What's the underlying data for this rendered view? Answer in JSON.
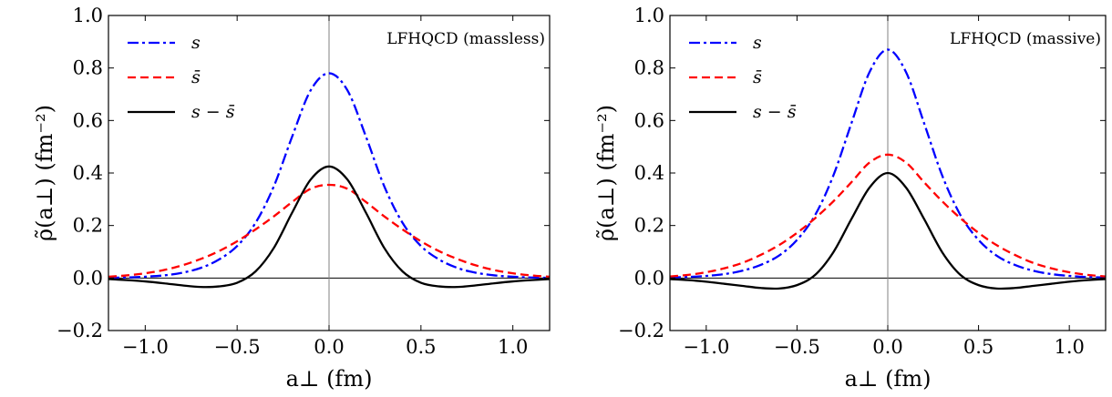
{
  "chart_data": [
    {
      "type": "line",
      "annotation": "LFHQCD (massless)",
      "xlabel": "a⊥ (fm)",
      "ylabel": "ρ̃(a⊥) (fm⁻²)",
      "xlim": [
        -1.2,
        1.2
      ],
      "ylim": [
        -0.2,
        1.0
      ],
      "xticks": [
        -1.0,
        -0.5,
        0.0,
        0.5,
        1.0
      ],
      "xtick_labels": [
        "−1.0",
        "−0.5",
        "0.0",
        "0.5",
        "1.0"
      ],
      "yticks": [
        -0.2,
        0.0,
        0.2,
        0.4,
        0.6,
        0.8,
        1.0
      ],
      "ytick_labels": [
        "−0.2",
        "0.0",
        "0.2",
        "0.4",
        "0.6",
        "0.8",
        "1.0"
      ],
      "grid": false,
      "legend_position": "top-left",
      "reference_lines": {
        "horizontal": 0.0,
        "vertical": 0.0
      },
      "series": [
        {
          "name": "s",
          "color": "#0000ff",
          "style": "dashdot",
          "x": [
            -1.2,
            -1.1,
            -1.0,
            -0.9,
            -0.8,
            -0.7,
            -0.6,
            -0.5,
            -0.4,
            -0.3,
            -0.2,
            -0.1,
            0.0,
            0.1,
            0.2,
            0.3,
            0.4,
            0.5,
            0.6,
            0.7,
            0.8,
            0.9,
            1.0,
            1.1,
            1.2
          ],
          "y": [
            0.001,
            0.002,
            0.005,
            0.01,
            0.02,
            0.038,
            0.07,
            0.122,
            0.21,
            0.35,
            0.54,
            0.715,
            0.78,
            0.715,
            0.54,
            0.35,
            0.21,
            0.122,
            0.07,
            0.038,
            0.02,
            0.01,
            0.005,
            0.002,
            0.001
          ]
        },
        {
          "name": "s̄",
          "color": "#ff0000",
          "style": "dashed",
          "x": [
            -1.2,
            -1.1,
            -1.0,
            -0.9,
            -0.8,
            -0.7,
            -0.6,
            -0.5,
            -0.4,
            -0.3,
            -0.2,
            -0.1,
            0.0,
            0.1,
            0.2,
            0.3,
            0.4,
            0.5,
            0.6,
            0.7,
            0.8,
            0.9,
            1.0,
            1.1,
            1.2
          ],
          "y": [
            0.005,
            0.01,
            0.018,
            0.03,
            0.048,
            0.072,
            0.102,
            0.14,
            0.185,
            0.235,
            0.29,
            0.34,
            0.355,
            0.34,
            0.29,
            0.235,
            0.185,
            0.14,
            0.102,
            0.072,
            0.048,
            0.03,
            0.018,
            0.01,
            0.005
          ]
        },
        {
          "name": "s − s̄",
          "color": "#000000",
          "style": "solid",
          "x": [
            -1.2,
            -1.1,
            -1.0,
            -0.9,
            -0.8,
            -0.7,
            -0.6,
            -0.5,
            -0.4,
            -0.3,
            -0.2,
            -0.1,
            0.0,
            0.1,
            0.2,
            0.3,
            0.4,
            0.5,
            0.6,
            0.7,
            0.8,
            0.9,
            1.0,
            1.1,
            1.2
          ],
          "y": [
            -0.004,
            -0.008,
            -0.013,
            -0.02,
            -0.028,
            -0.034,
            -0.032,
            -0.018,
            0.025,
            0.115,
            0.25,
            0.375,
            0.425,
            0.375,
            0.25,
            0.115,
            0.025,
            -0.018,
            -0.032,
            -0.034,
            -0.028,
            -0.02,
            -0.013,
            -0.008,
            -0.004
          ]
        }
      ]
    },
    {
      "type": "line",
      "annotation": "LFHQCD (massive)",
      "xlabel": "a⊥ (fm)",
      "ylabel": "ρ̃(a⊥) (fm⁻²)",
      "xlim": [
        -1.2,
        1.2
      ],
      "ylim": [
        -0.2,
        1.0
      ],
      "xticks": [
        -1.0,
        -0.5,
        0.0,
        0.5,
        1.0
      ],
      "xtick_labels": [
        "−1.0",
        "−0.5",
        "0.0",
        "0.5",
        "1.0"
      ],
      "yticks": [
        -0.2,
        0.0,
        0.2,
        0.4,
        0.6,
        0.8,
        1.0
      ],
      "ytick_labels": [
        "−0.2",
        "0.0",
        "0.2",
        "0.4",
        "0.6",
        "0.8",
        "1.0"
      ],
      "grid": false,
      "legend_position": "top-left",
      "reference_lines": {
        "horizontal": 0.0,
        "vertical": 0.0
      },
      "series": [
        {
          "name": "s",
          "color": "#0000ff",
          "style": "dashdot",
          "x": [
            -1.2,
            -1.1,
            -1.0,
            -0.9,
            -0.8,
            -0.7,
            -0.6,
            -0.5,
            -0.4,
            -0.3,
            -0.2,
            -0.1,
            0.0,
            0.1,
            0.2,
            0.3,
            0.4,
            0.5,
            0.6,
            0.7,
            0.8,
            0.9,
            1.0,
            1.1,
            1.2
          ],
          "y": [
            0.002,
            0.004,
            0.008,
            0.015,
            0.028,
            0.05,
            0.085,
            0.145,
            0.24,
            0.39,
            0.59,
            0.785,
            0.87,
            0.785,
            0.59,
            0.39,
            0.24,
            0.145,
            0.085,
            0.05,
            0.028,
            0.015,
            0.008,
            0.004,
            0.002
          ]
        },
        {
          "name": "s̄",
          "color": "#ff0000",
          "style": "dashed",
          "x": [
            -1.2,
            -1.1,
            -1.0,
            -0.9,
            -0.8,
            -0.7,
            -0.6,
            -0.5,
            -0.4,
            -0.3,
            -0.2,
            -0.1,
            0.0,
            0.1,
            0.2,
            0.3,
            0.4,
            0.5,
            0.6,
            0.7,
            0.8,
            0.9,
            1.0,
            1.1,
            1.2
          ],
          "y": [
            0.006,
            0.012,
            0.022,
            0.037,
            0.058,
            0.088,
            0.125,
            0.172,
            0.228,
            0.292,
            0.365,
            0.44,
            0.47,
            0.44,
            0.365,
            0.292,
            0.228,
            0.172,
            0.125,
            0.088,
            0.058,
            0.037,
            0.022,
            0.012,
            0.006
          ]
        },
        {
          "name": "s − s̄",
          "color": "#000000",
          "style": "solid",
          "x": [
            -1.2,
            -1.1,
            -1.0,
            -0.9,
            -0.8,
            -0.7,
            -0.6,
            -0.5,
            -0.4,
            -0.3,
            -0.2,
            -0.1,
            0.0,
            0.1,
            0.2,
            0.3,
            0.4,
            0.5,
            0.6,
            0.7,
            0.8,
            0.9,
            1.0,
            1.1,
            1.2
          ],
          "y": [
            -0.004,
            -0.008,
            -0.014,
            -0.022,
            -0.03,
            -0.038,
            -0.04,
            -0.027,
            0.012,
            0.098,
            0.225,
            0.345,
            0.4,
            0.345,
            0.225,
            0.098,
            0.012,
            -0.027,
            -0.04,
            -0.038,
            -0.03,
            -0.022,
            -0.014,
            -0.008,
            -0.004
          ]
        }
      ]
    }
  ]
}
